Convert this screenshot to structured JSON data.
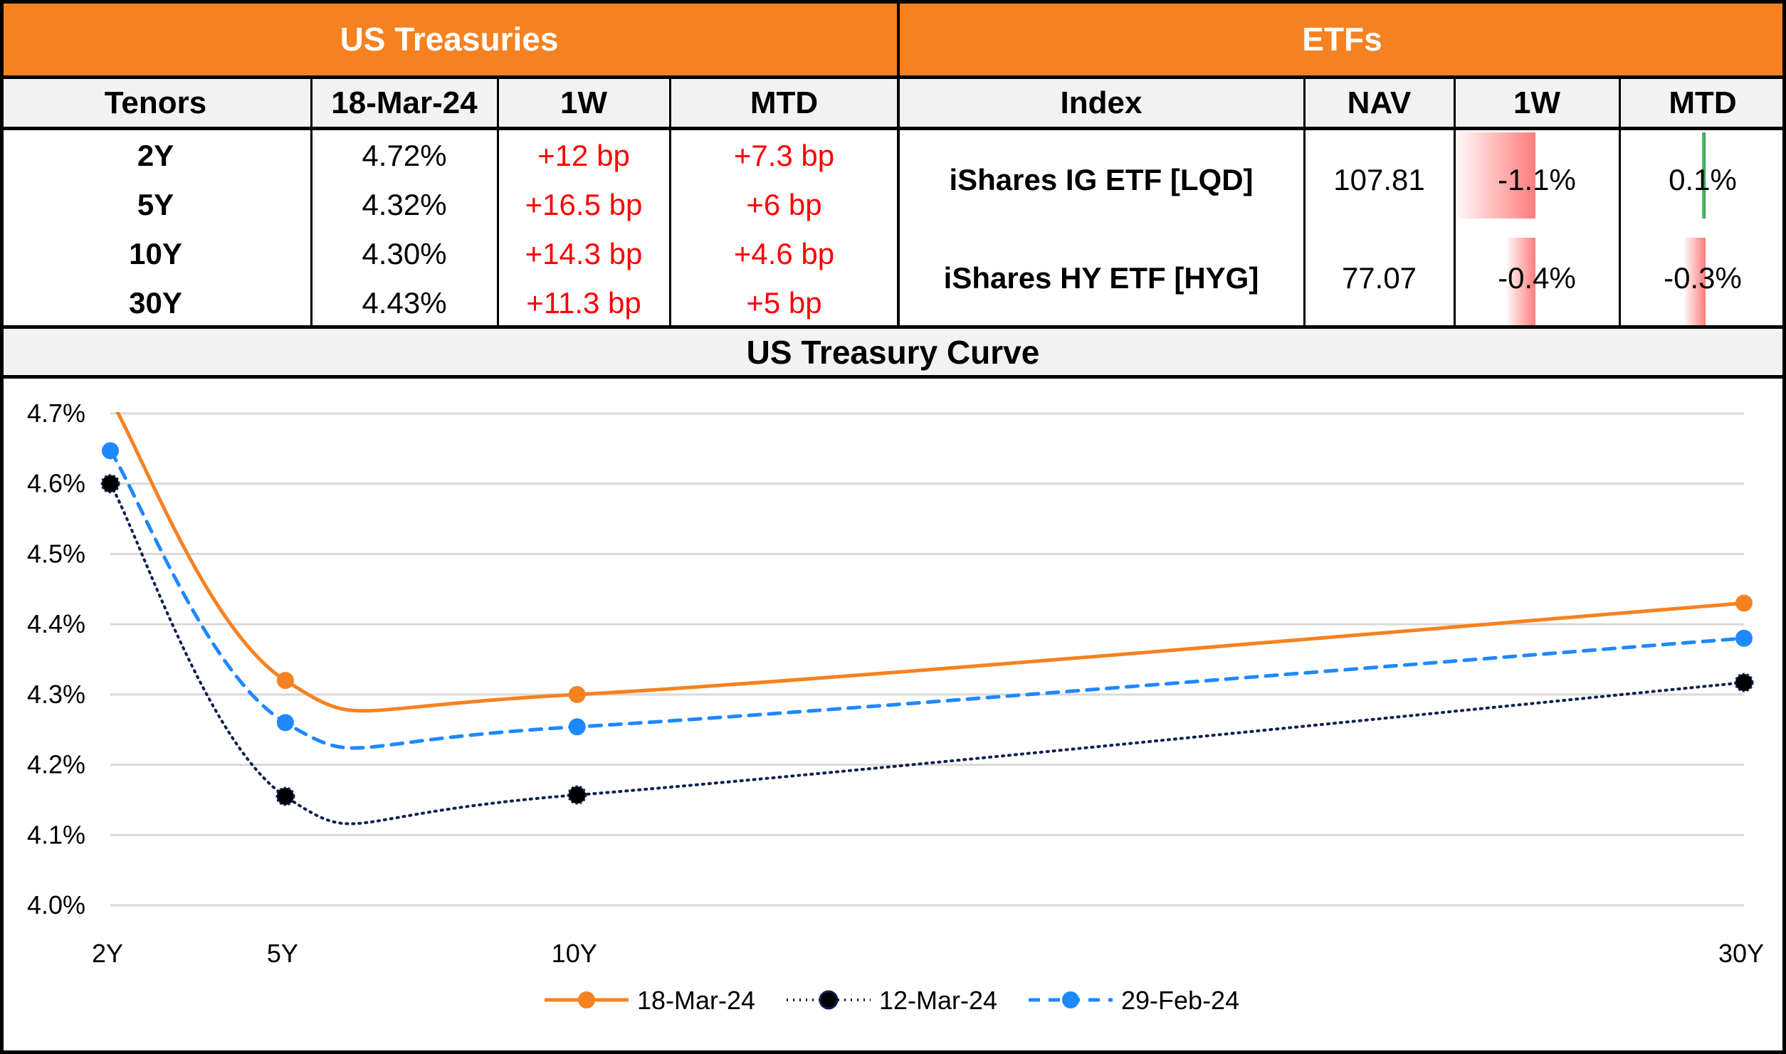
{
  "treasuries": {
    "title": "US Treasuries",
    "headers": [
      "Tenors",
      "18-Mar-24",
      "1W",
      "MTD"
    ],
    "rows": [
      {
        "tenor": "2Y",
        "yield": "4.72%",
        "w1": "+12 bp",
        "mtd": "+7.3 bp"
      },
      {
        "tenor": "5Y",
        "yield": "4.32%",
        "w1": "+16.5 bp",
        "mtd": "+6 bp"
      },
      {
        "tenor": "10Y",
        "yield": "4.30%",
        "w1": "+14.3 bp",
        "mtd": "+4.6 bp"
      },
      {
        "tenor": "30Y",
        "yield": "4.43%",
        "w1": "+11.3 bp",
        "mtd": "+5 bp"
      }
    ]
  },
  "etfs": {
    "title": "ETFs",
    "headers": [
      "Index",
      "NAV",
      "1W",
      "MTD"
    ],
    "rows": [
      {
        "index": "iShares IG ETF [LQD]",
        "nav": "107.81",
        "w1": "-1.1%",
        "mtd": "0.1%",
        "w1_value": -1.1,
        "mtd_value": 0.1
      },
      {
        "index": "iShares HY ETF [HYG]",
        "nav": "77.07",
        "w1": "-0.4%",
        "mtd": "-0.3%",
        "w1_value": -0.4,
        "mtd_value": -0.3
      }
    ]
  },
  "colors": {
    "header_orange": "#F58220",
    "negative_red": "#FF0000",
    "databar_red": "#FF7C7C",
    "databar_green": "#2EA44F"
  },
  "chart_data": {
    "type": "line",
    "title": "US Treasury Curve",
    "xlabel": "",
    "ylabel": "",
    "x": [
      2,
      5,
      10,
      30
    ],
    "x_tick_labels": [
      "2Y",
      "5Y",
      "10Y",
      "30Y"
    ],
    "ylim": [
      4.0,
      4.7
    ],
    "y_ticks": [
      4.0,
      4.1,
      4.2,
      4.3,
      4.4,
      4.5,
      4.6,
      4.7
    ],
    "y_tick_labels": [
      "4.0%",
      "4.1%",
      "4.2%",
      "4.3%",
      "4.4%",
      "4.5%",
      "4.6%",
      "4.7%"
    ],
    "grid": true,
    "smooth": true,
    "legend_position": "bottom",
    "series": [
      {
        "name": "18-Mar-24",
        "values": [
          4.72,
          4.32,
          4.3,
          4.43
        ],
        "color": "#F58220",
        "style": "solid"
      },
      {
        "name": "12-Mar-24",
        "values": [
          4.6,
          4.155,
          4.157,
          4.317
        ],
        "color": "#0B1F4F",
        "style": "dotted"
      },
      {
        "name": "29-Feb-24",
        "values": [
          4.647,
          4.26,
          4.254,
          4.38
        ],
        "color": "#1E88FF",
        "style": "dashed"
      }
    ]
  }
}
